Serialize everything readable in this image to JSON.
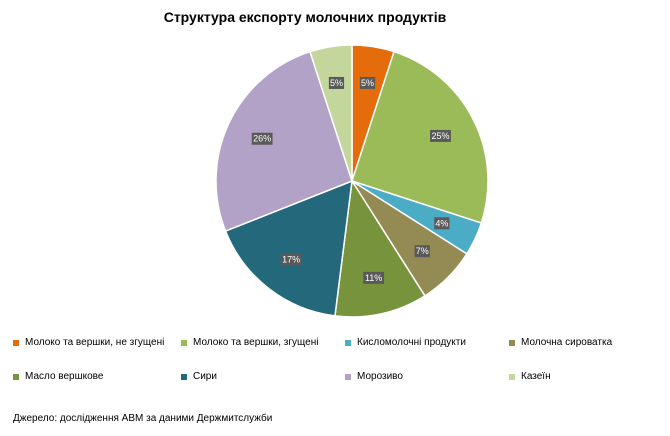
{
  "chart_data": {
    "type": "pie",
    "title": "Структура експорту молочних продуктів",
    "categories": [
      "Молоко та вершки, не згущені",
      "Молоко та вершки, згущені",
      "Кисломолочні  продукти",
      "Молочна сироватка",
      "Масло вершкове",
      "Сири",
      "Морозиво",
      "Казеїн"
    ],
    "values": [
      5,
      25,
      4,
      7,
      11,
      17,
      26,
      5
    ],
    "value_labels": [
      "5%",
      "25%",
      "4%",
      "7%",
      "11%",
      "17%",
      "26%",
      "5%"
    ],
    "colors": [
      "#E46C0A",
      "#9BBB59",
      "#4BACC6",
      "#948A54",
      "#77933C",
      "#24687C",
      "#B3A2C7",
      "#C3D69B"
    ],
    "legend_placement": "bottom"
  },
  "source": "Джерело: дослідження АВМ за даними Держмитслужби"
}
